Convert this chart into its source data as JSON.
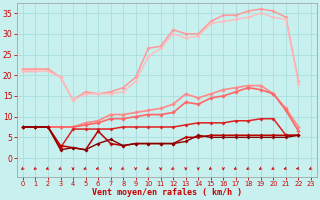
{
  "background_color": "#c8f0ee",
  "grid_color": "#aadddd",
  "xlabel": "Vent moyen/en rafales ( km/h )",
  "xlabel_color": "#cc0000",
  "tick_color": "#cc0000",
  "ylim": [
    -4.5,
    37.5
  ],
  "xlim": [
    -0.5,
    23.5
  ],
  "yticks": [
    0,
    5,
    10,
    15,
    20,
    25,
    30,
    35
  ],
  "xticks": [
    0,
    1,
    2,
    3,
    4,
    5,
    6,
    7,
    8,
    9,
    10,
    11,
    12,
    13,
    14,
    15,
    16,
    17,
    18,
    19,
    20,
    21,
    22,
    23
  ],
  "x": [
    0,
    1,
    2,
    3,
    4,
    5,
    6,
    7,
    8,
    9,
    10,
    11,
    12,
    13,
    14,
    15,
    16,
    17,
    18,
    19,
    20,
    21,
    22,
    23
  ],
  "lines": [
    {
      "color": "#ffbbcc",
      "lw": 1.0,
      "ms": 2.0,
      "y": [
        21.5,
        21.5,
        21.5,
        null,
        null,
        null,
        null,
        null,
        null,
        null,
        null,
        null,
        null,
        null,
        null,
        null,
        null,
        null,
        null,
        null,
        null,
        null,
        null,
        null
      ]
    },
    {
      "color": "#ffaaaa",
      "lw": 1.0,
      "ms": 2.0,
      "y": [
        21.0,
        21.0,
        null,
        19.5,
        null,
        null,
        null,
        null,
        null,
        null,
        null,
        null,
        null,
        null,
        null,
        null,
        null,
        null,
        null,
        null,
        null,
        null,
        null,
        null
      ]
    },
    {
      "color": "#ff9999",
      "lw": 1.1,
      "ms": 2.0,
      "y": [
        21.5,
        21.5,
        21.5,
        19.5,
        14.0,
        16.0,
        15.5,
        16.0,
        17.0,
        19.5,
        26.5,
        27.0,
        31.0,
        30.0,
        30.0,
        33.0,
        34.5,
        34.5,
        35.5,
        36.0,
        35.5,
        34.0,
        18.5,
        null
      ]
    },
    {
      "color": "#ffbbbb",
      "lw": 1.0,
      "ms": 2.0,
      "y": [
        21.0,
        21.0,
        21.0,
        19.5,
        14.0,
        15.5,
        15.5,
        15.5,
        16.0,
        18.5,
        24.5,
        26.5,
        30.0,
        29.0,
        29.5,
        32.5,
        33.0,
        33.5,
        34.0,
        35.0,
        34.0,
        33.5,
        18.0,
        null
      ]
    },
    {
      "color": "#ff8888",
      "lw": 1.2,
      "ms": 2.2,
      "y": [
        7.5,
        7.5,
        7.5,
        7.5,
        7.5,
        8.5,
        9.0,
        10.5,
        10.5,
        11.0,
        11.5,
        12.0,
        13.0,
        15.5,
        14.5,
        15.5,
        16.5,
        17.0,
        17.5,
        17.5,
        15.5,
        12.0,
        7.5,
        null
      ]
    },
    {
      "color": "#ff6666",
      "lw": 1.2,
      "ms": 2.2,
      "y": [
        7.5,
        7.5,
        7.5,
        7.5,
        7.5,
        8.0,
        8.5,
        9.5,
        9.5,
        10.0,
        10.5,
        10.5,
        11.0,
        13.5,
        13.0,
        14.5,
        15.0,
        16.0,
        17.0,
        16.5,
        15.5,
        11.5,
        6.5,
        null
      ]
    },
    {
      "color": "#dd2222",
      "lw": 1.1,
      "ms": 2.0,
      "y": [
        7.5,
        7.5,
        7.5,
        2.5,
        7.0,
        7.0,
        7.0,
        7.0,
        7.5,
        7.5,
        7.5,
        7.5,
        7.5,
        8.0,
        8.5,
        8.5,
        8.5,
        9.0,
        9.0,
        9.5,
        9.5,
        5.5,
        5.5,
        null
      ]
    },
    {
      "color": "#bb0000",
      "lw": 1.1,
      "ms": 2.0,
      "y": [
        7.5,
        7.5,
        7.5,
        3.0,
        2.5,
        2.0,
        6.5,
        3.5,
        3.0,
        3.5,
        3.5,
        3.5,
        3.5,
        5.0,
        5.0,
        5.5,
        5.5,
        5.5,
        5.5,
        5.5,
        5.5,
        5.5,
        5.5,
        null
      ]
    },
    {
      "color": "#880000",
      "lw": 1.0,
      "ms": 2.0,
      "y": [
        7.5,
        7.5,
        7.5,
        2.0,
        2.5,
        2.0,
        3.5,
        4.5,
        3.0,
        3.5,
        3.5,
        3.5,
        3.5,
        4.0,
        5.5,
        5.0,
        5.0,
        5.0,
        5.0,
        5.0,
        5.0,
        5.0,
        5.5,
        null
      ]
    }
  ],
  "arrows": {
    "y_center": -2.5,
    "color": "#cc0000",
    "angles_deg": [
      225,
      225,
      210,
      215,
      270,
      210,
      200,
      270,
      215,
      270,
      215,
      270,
      215,
      270,
      270,
      215,
      270,
      215,
      215,
      215,
      215,
      200,
      195,
      215
    ]
  }
}
